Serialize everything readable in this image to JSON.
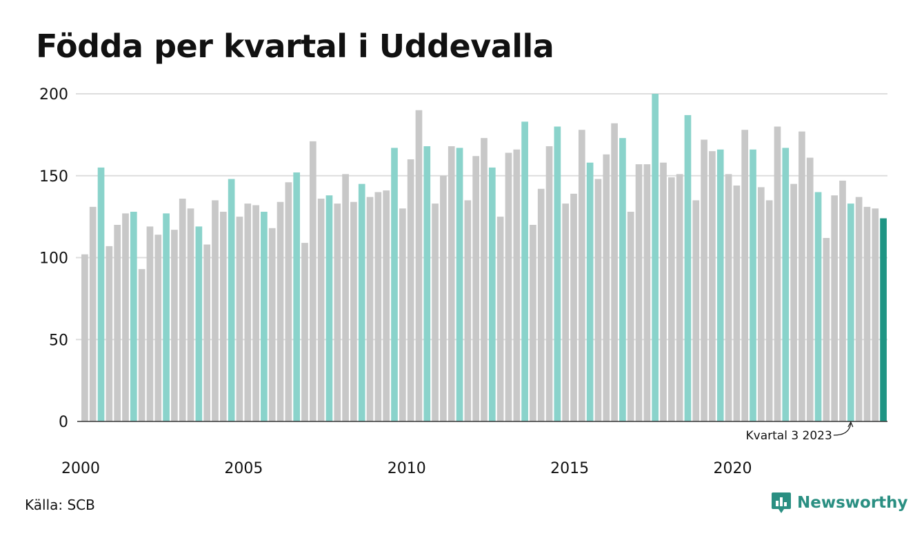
{
  "title": "Födda per kvartal i Uddevalla",
  "source": "Källa: SCB",
  "brand": "Newsworthy",
  "chart_data": {
    "type": "bar",
    "title": "Födda per kvartal i Uddevalla",
    "xlabel": "",
    "ylabel": "",
    "ylim": [
      0,
      200
    ],
    "yticks": [
      0,
      50,
      100,
      150,
      200
    ],
    "x_start": "2000 Q1",
    "x_end": "2024 Q3",
    "x_ticks": [
      "2000",
      "2005",
      "2010",
      "2015",
      "2020"
    ],
    "grid": true,
    "colors": {
      "default": "#c8c8c8",
      "highlight": "#8ad3cb",
      "latest": "#1f9584",
      "grid": "#dddddd",
      "axis": "#333333"
    },
    "highlight_quarter": 3,
    "annotation": "Kvartal 3 2023",
    "values": [
      102,
      131,
      155,
      107,
      120,
      127,
      128,
      93,
      119,
      114,
      127,
      117,
      136,
      130,
      119,
      108,
      135,
      128,
      148,
      125,
      133,
      132,
      128,
      118,
      134,
      146,
      152,
      109,
      171,
      136,
      138,
      133,
      151,
      134,
      145,
      137,
      140,
      141,
      167,
      130,
      160,
      190,
      168,
      133,
      150,
      168,
      167,
      135,
      162,
      173,
      155,
      125,
      164,
      166,
      183,
      120,
      142,
      168,
      180,
      133,
      139,
      178,
      158,
      148,
      163,
      182,
      173,
      128,
      157,
      157,
      200,
      158,
      149,
      151,
      187,
      135,
      172,
      165,
      166,
      151,
      144,
      178,
      166,
      143,
      135,
      180,
      167,
      145,
      177,
      161,
      140,
      112,
      138,
      147,
      133,
      137,
      131,
      130,
      124
    ]
  }
}
